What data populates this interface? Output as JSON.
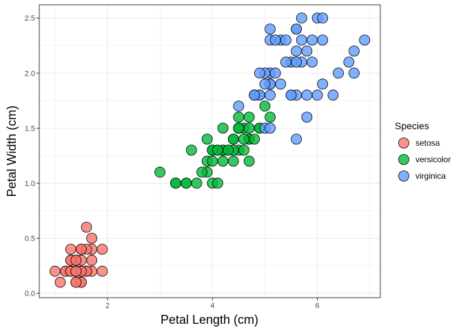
{
  "chart_data": {
    "type": "scatter",
    "xlabel": "Petal Length (cm)",
    "ylabel": "Petal Width (cm)",
    "xlim": [
      0.7,
      7.2
    ],
    "ylim": [
      -0.04,
      2.62
    ],
    "x_ticks": [
      2,
      4,
      6
    ],
    "y_ticks": [
      0.0,
      0.5,
      1.0,
      1.5,
      2.0,
      2.5
    ],
    "x_tick_labels": [
      "2",
      "4",
      "6"
    ],
    "y_tick_labels": [
      "0.0",
      "0.5",
      "1.0",
      "1.5",
      "2.0",
      "2.5"
    ],
    "grid": true,
    "legend": {
      "title": "Species",
      "position": "right"
    },
    "series": [
      {
        "name": "setosa",
        "color": "#F8766D",
        "points": [
          [
            1.4,
            0.2
          ],
          [
            1.4,
            0.2
          ],
          [
            1.3,
            0.2
          ],
          [
            1.5,
            0.2
          ],
          [
            1.4,
            0.2
          ],
          [
            1.7,
            0.4
          ],
          [
            1.4,
            0.3
          ],
          [
            1.5,
            0.2
          ],
          [
            1.4,
            0.2
          ],
          [
            1.5,
            0.1
          ],
          [
            1.5,
            0.2
          ],
          [
            1.6,
            0.2
          ],
          [
            1.4,
            0.1
          ],
          [
            1.1,
            0.1
          ],
          [
            1.2,
            0.2
          ],
          [
            1.5,
            0.4
          ],
          [
            1.3,
            0.4
          ],
          [
            1.4,
            0.3
          ],
          [
            1.7,
            0.3
          ],
          [
            1.5,
            0.3
          ],
          [
            1.7,
            0.2
          ],
          [
            1.5,
            0.4
          ],
          [
            1.0,
            0.2
          ],
          [
            1.7,
            0.5
          ],
          [
            1.9,
            0.2
          ],
          [
            1.6,
            0.2
          ],
          [
            1.6,
            0.4
          ],
          [
            1.5,
            0.2
          ],
          [
            1.4,
            0.2
          ],
          [
            1.6,
            0.2
          ],
          [
            1.6,
            0.2
          ],
          [
            1.5,
            0.4
          ],
          [
            1.5,
            0.1
          ],
          [
            1.4,
            0.2
          ],
          [
            1.5,
            0.2
          ],
          [
            1.2,
            0.2
          ],
          [
            1.3,
            0.2
          ],
          [
            1.4,
            0.1
          ],
          [
            1.3,
            0.2
          ],
          [
            1.5,
            0.2
          ],
          [
            1.3,
            0.3
          ],
          [
            1.3,
            0.3
          ],
          [
            1.3,
            0.2
          ],
          [
            1.6,
            0.6
          ],
          [
            1.9,
            0.4
          ],
          [
            1.4,
            0.3
          ],
          [
            1.6,
            0.2
          ],
          [
            1.4,
            0.2
          ],
          [
            1.5,
            0.2
          ],
          [
            1.4,
            0.2
          ]
        ]
      },
      {
        "name": "versicolor",
        "color": "#00BA38",
        "points": [
          [
            4.7,
            1.4
          ],
          [
            4.5,
            1.5
          ],
          [
            4.9,
            1.5
          ],
          [
            4.0,
            1.3
          ],
          [
            4.6,
            1.5
          ],
          [
            4.5,
            1.3
          ],
          [
            4.7,
            1.6
          ],
          [
            3.3,
            1.0
          ],
          [
            4.6,
            1.3
          ],
          [
            3.9,
            1.4
          ],
          [
            3.5,
            1.0
          ],
          [
            4.2,
            1.5
          ],
          [
            4.0,
            1.0
          ],
          [
            4.7,
            1.4
          ],
          [
            3.6,
            1.3
          ],
          [
            4.4,
            1.4
          ],
          [
            4.5,
            1.5
          ],
          [
            4.1,
            1.0
          ],
          [
            4.5,
            1.5
          ],
          [
            3.9,
            1.1
          ],
          [
            4.8,
            1.8
          ],
          [
            4.0,
            1.3
          ],
          [
            4.9,
            1.5
          ],
          [
            4.7,
            1.2
          ],
          [
            4.3,
            1.3
          ],
          [
            4.4,
            1.4
          ],
          [
            4.8,
            1.4
          ],
          [
            5.0,
            1.7
          ],
          [
            4.5,
            1.5
          ],
          [
            3.5,
            1.0
          ],
          [
            3.8,
            1.1
          ],
          [
            3.7,
            1.0
          ],
          [
            3.9,
            1.2
          ],
          [
            5.1,
            1.6
          ],
          [
            4.5,
            1.5
          ],
          [
            4.5,
            1.6
          ],
          [
            4.7,
            1.5
          ],
          [
            4.4,
            1.3
          ],
          [
            4.1,
            1.3
          ],
          [
            4.0,
            1.3
          ],
          [
            4.4,
            1.2
          ],
          [
            4.6,
            1.4
          ],
          [
            4.0,
            1.2
          ],
          [
            3.3,
            1.0
          ],
          [
            4.2,
            1.3
          ],
          [
            4.2,
            1.2
          ],
          [
            4.2,
            1.3
          ],
          [
            4.3,
            1.3
          ],
          [
            3.0,
            1.1
          ],
          [
            4.1,
            1.3
          ]
        ]
      },
      {
        "name": "virginica",
        "color": "#619CFF",
        "points": [
          [
            6.0,
            2.5
          ],
          [
            5.1,
            1.9
          ],
          [
            5.9,
            2.1
          ],
          [
            5.6,
            1.8
          ],
          [
            5.8,
            2.2
          ],
          [
            6.6,
            2.1
          ],
          [
            4.5,
            1.7
          ],
          [
            6.3,
            1.8
          ],
          [
            5.8,
            1.8
          ],
          [
            6.1,
            2.5
          ],
          [
            5.1,
            2.0
          ],
          [
            5.3,
            1.9
          ],
          [
            5.5,
            2.1
          ],
          [
            5.0,
            2.0
          ],
          [
            5.1,
            2.4
          ],
          [
            5.3,
            2.3
          ],
          [
            5.5,
            1.8
          ],
          [
            6.7,
            2.2
          ],
          [
            6.9,
            2.3
          ],
          [
            5.0,
            1.5
          ],
          [
            5.7,
            2.3
          ],
          [
            4.9,
            2.0
          ],
          [
            6.7,
            2.0
          ],
          [
            4.9,
            1.8
          ],
          [
            5.7,
            2.1
          ],
          [
            6.0,
            1.8
          ],
          [
            4.8,
            1.8
          ],
          [
            4.9,
            1.8
          ],
          [
            5.6,
            2.1
          ],
          [
            5.8,
            1.6
          ],
          [
            6.1,
            1.9
          ],
          [
            6.4,
            2.0
          ],
          [
            5.6,
            2.2
          ],
          [
            5.1,
            1.5
          ],
          [
            5.6,
            1.4
          ],
          [
            6.1,
            2.3
          ],
          [
            5.6,
            2.4
          ],
          [
            5.5,
            1.8
          ],
          [
            4.8,
            1.8
          ],
          [
            5.4,
            2.1
          ],
          [
            5.6,
            2.4
          ],
          [
            5.1,
            2.3
          ],
          [
            5.1,
            1.9
          ],
          [
            5.9,
            2.3
          ],
          [
            5.7,
            2.5
          ],
          [
            5.2,
            2.3
          ],
          [
            5.0,
            1.9
          ],
          [
            5.2,
            2.0
          ],
          [
            5.4,
            2.3
          ],
          [
            5.1,
            1.8
          ]
        ]
      }
    ]
  }
}
